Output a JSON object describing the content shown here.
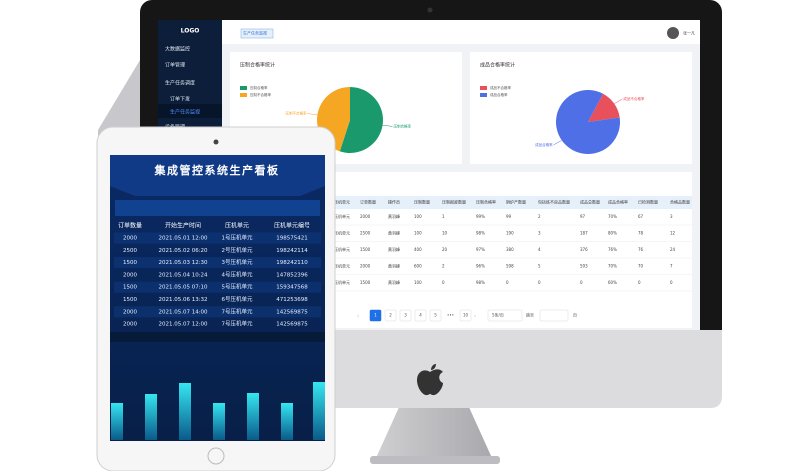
{
  "monitor": {
    "sidebar": {
      "logo": "LOGO",
      "menu": [
        "大数据监控",
        "订单管理",
        "生产任务调度",
        "订单下发",
        "生产任务监视",
        "设备管理"
      ]
    },
    "topbar": {
      "tab": "生产任务监视",
      "user": "张一凡"
    },
    "charts": [
      {
        "type": "pie",
        "title": "压制合格率统计",
        "categories": [
          "压制合格率",
          "压制不合格率"
        ],
        "values": [
          55,
          45
        ],
        "colors": [
          "#1a9a6c",
          "#f5a623"
        ]
      },
      {
        "type": "pie",
        "title": "成品合格率统计",
        "categories": [
          "成品不合格率",
          "成品合格率"
        ],
        "values": [
          15,
          85
        ],
        "colors": [
          "#e8505b",
          "#4e6fe6"
        ]
      }
    ],
    "table": {
      "columns": [
        "压机单元",
        "订单数量",
        "操作员",
        "压制数量",
        "压制报废数量",
        "压制合格率",
        "铜炉产数量",
        "包括炼不良品数量",
        "成品总数量",
        "成品合格率",
        "已检测数量",
        "合格品数量"
      ],
      "rows": [
        [
          "1号压机单元",
          "2000",
          "黄羽峰",
          "100",
          "1",
          "99%",
          "99",
          "2",
          "97",
          "70%",
          "67",
          "3"
        ],
        [
          "2号压机单元",
          "2500",
          "黄羽峰",
          "100",
          "10",
          "98%",
          "190",
          "3",
          "187",
          "80%",
          "78",
          "12"
        ],
        [
          "3号压机单元",
          "1500",
          "黄羽峰",
          "400",
          "20",
          "97%",
          "380",
          "4",
          "376",
          "76%",
          "76",
          "24"
        ],
        [
          "4号压机单元",
          "2000",
          "黄羽峰",
          "600",
          "2",
          "96%",
          "598",
          "5",
          "593",
          "70%",
          "70",
          "7"
        ],
        [
          "5号压机单元",
          "1500",
          "黄羽峰",
          "100",
          "0",
          "98%",
          "0",
          "0",
          "0",
          "60%",
          "0",
          "0"
        ]
      ]
    },
    "pagination": {
      "pages": [
        "1",
        "2",
        "3",
        "4",
        "5",
        "•••",
        "10"
      ],
      "page_size": "5条/页",
      "jump": "跳至",
      "page_unit": "页"
    }
  },
  "tablet": {
    "title": "集成管控系统生产看板",
    "table": {
      "columns": [
        "订单数量",
        "开始生产时间",
        "压机单元",
        "压机单元编号"
      ],
      "rows": [
        [
          "2000",
          "2021.05.01 12:00",
          "1号压机单元",
          "198575421"
        ],
        [
          "2500",
          "2021.05.02 06:20",
          "2号压机单元",
          "198242114"
        ],
        [
          "1500",
          "2021.05.03 12:30",
          "3号压机单元",
          "198242110"
        ],
        [
          "2000",
          "2021.05.04 10:24",
          "4号压机单元",
          "147852396"
        ],
        [
          "1500",
          "2021.05.05 07:10",
          "5号压机单元",
          "159347568"
        ],
        [
          "1500",
          "2021.05.06 13:32",
          "6号压机单元",
          "471253698"
        ],
        [
          "2000",
          "2021.05.07 14:00",
          "7号压机单元",
          "142569875"
        ],
        [
          "2000",
          "2021.05.07 12:00",
          "7号压机单元",
          "142569875"
        ]
      ]
    },
    "bars": {
      "type": "bar",
      "values": [
        37,
        46,
        57,
        37,
        47,
        37,
        58
      ]
    }
  }
}
